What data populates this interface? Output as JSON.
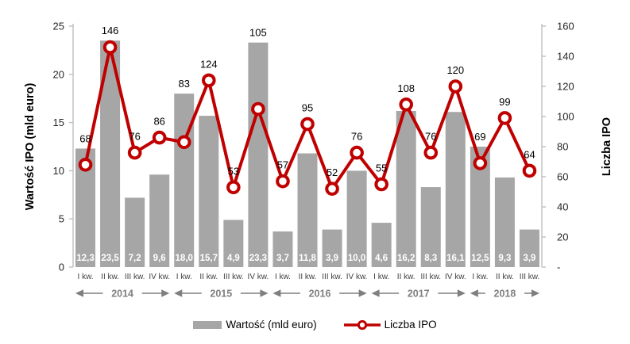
{
  "chart_data": {
    "type": "bar",
    "combo": "bar+line, dual axis",
    "categories": [
      "I kw.",
      "II kw.",
      "III kw.",
      "IV kw.",
      "I kw.",
      "II kw.",
      "III kw.",
      "IV kw.",
      "I kw.",
      "II kw.",
      "III kw.",
      "IV kw.",
      "I kw.",
      "II kw.",
      "III kw.",
      "IV kw.",
      "I kw.",
      "II kw.",
      "III kw."
    ],
    "year_groups": [
      {
        "label": "2014",
        "count": 4
      },
      {
        "label": "2015",
        "count": 4
      },
      {
        "label": "2016",
        "count": 4
      },
      {
        "label": "2017",
        "count": 4
      },
      {
        "label": "2018",
        "count": 3
      }
    ],
    "series": [
      {
        "name": "Wartość (mld euro)",
        "type": "bar",
        "axis": "left",
        "values": [
          12.3,
          23.5,
          7.2,
          9.6,
          18.0,
          15.7,
          4.9,
          23.3,
          3.7,
          11.8,
          3.9,
          10.0,
          4.6,
          16.2,
          8.3,
          16.1,
          12.5,
          9.3,
          3.9
        ],
        "labels": [
          "12,3",
          "23,5",
          "7,2",
          "9,6",
          "18,0",
          "15,7",
          "4,9",
          "23,3",
          "3,7",
          "11,8",
          "3,9",
          "10,0",
          "4,6",
          "16,2",
          "8,3",
          "16,1",
          "12,5",
          "9,3",
          "3,9"
        ]
      },
      {
        "name": "Liczba IPO",
        "type": "line",
        "axis": "right",
        "values": [
          68,
          146,
          76,
          86,
          83,
          124,
          53,
          105,
          57,
          95,
          52,
          76,
          55,
          108,
          76,
          120,
          69,
          99,
          64
        ],
        "labels": [
          "68",
          "146",
          "76",
          "86",
          "83",
          "124",
          "53",
          "105",
          "57",
          "95",
          "52",
          "76",
          "55",
          "108",
          "76",
          "120",
          "69",
          "99",
          "64"
        ]
      }
    ],
    "left_axis": {
      "title": "Wartość IPO (mld euro)",
      "min": 0,
      "max": 25,
      "step": 5,
      "ticks": [
        "25",
        "20",
        "15",
        "10",
        "5",
        "0"
      ]
    },
    "right_axis": {
      "title": "Liczba IPO",
      "min": 0,
      "max": 160,
      "step": 20,
      "ticks": [
        "160",
        "140",
        "120",
        "100",
        "80",
        "60",
        "40",
        "20",
        "-"
      ]
    },
    "legend": [
      {
        "label": "Wartość (mld euro)",
        "swatch": "bar"
      },
      {
        "label": "Liczba IPO",
        "swatch": "line-with-circle-marker"
      }
    ],
    "grid": "off",
    "legend_position": "bottom-center",
    "colors": {
      "bar": "#A6A6A6",
      "line": "#C00000",
      "marker_fill": "#FFFFFF",
      "axis": "#BFBFBF",
      "year_label": "#7F7F7F",
      "quarter_label": "#3F3F3F",
      "tick_label": "#262626",
      "bar_label": "#FFFFFF",
      "data_label": "#000000"
    }
  }
}
